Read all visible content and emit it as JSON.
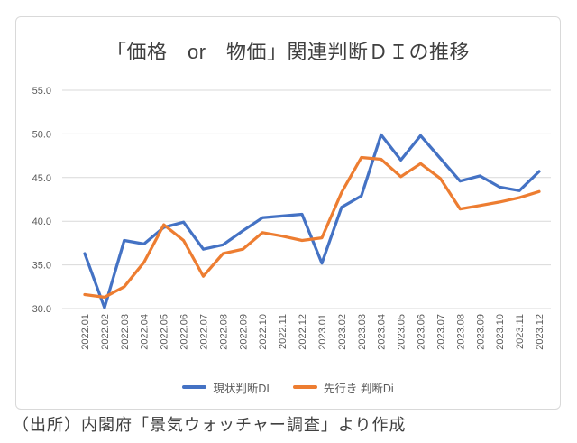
{
  "title": "「価格　or　物価」関連判断ＤＩの推移",
  "caption": "（出所）内閣府「景気ウォッチャー調査」より作成",
  "colors": {
    "series_current": "#4472C4",
    "series_outlook": "#ED7D31",
    "gridline": "#D9D9D9",
    "axis_text": "#595959",
    "title_text": "#404040",
    "frame": "#D9D9D9"
  },
  "legend": {
    "item1": "現状判断DI",
    "item2": "先行き 判断Di"
  },
  "chart_data": {
    "type": "line",
    "title": "「価格　or　物価」関連判断ＤＩの推移",
    "xlabel": "",
    "ylabel": "",
    "grid": true,
    "legend_position": "bottom",
    "ylim": [
      30.0,
      55.0
    ],
    "yticks": [
      55.0,
      50.0,
      45.0,
      40.0,
      35.0,
      30.0
    ],
    "categories": [
      "2022.01",
      "2022.02",
      "2022.03",
      "2022.04",
      "2022.05",
      "2022.06",
      "2022.07",
      "2022.08",
      "2022.09",
      "2022.10",
      "2022.11",
      "2022.12",
      "2023.01",
      "2023.02",
      "2023.03",
      "2023.04",
      "2023.05",
      "2023.06",
      "2023.07",
      "2023.08",
      "2023.09",
      "2023.10",
      "2023.11",
      "2023.12"
    ],
    "series": [
      {
        "name": "現状判断DI",
        "color": "#4472C4",
        "values": [
          36.3,
          30.1,
          37.8,
          37.4,
          39.3,
          39.9,
          36.8,
          37.3,
          38.9,
          40.4,
          40.6,
          40.8,
          35.2,
          41.6,
          42.9,
          49.9,
          47.0,
          49.8,
          47.2,
          44.6,
          45.2,
          43.9,
          43.5,
          45.7
        ]
      },
      {
        "name": "先行き 判断Di",
        "color": "#ED7D31",
        "values": [
          31.6,
          31.3,
          32.5,
          35.3,
          39.6,
          37.8,
          33.7,
          36.3,
          36.8,
          38.7,
          38.3,
          37.8,
          38.1,
          43.3,
          47.3,
          47.1,
          45.1,
          46.6,
          44.9,
          41.4,
          41.8,
          42.2,
          42.7,
          43.4
        ]
      }
    ]
  }
}
